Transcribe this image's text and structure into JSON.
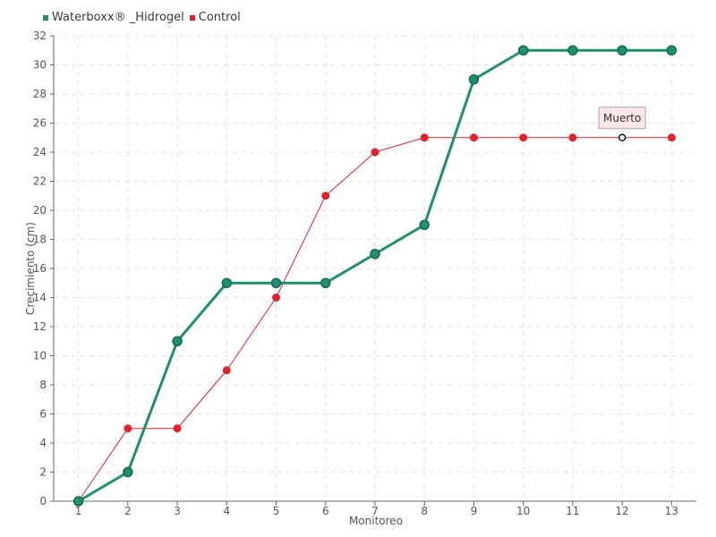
{
  "chart_data": {
    "type": "line",
    "x": [
      1,
      2,
      3,
      4,
      5,
      6,
      7,
      8,
      9,
      10,
      11,
      12,
      13
    ],
    "xlabel": "Monitoreo",
    "ylabel": "Crecimiento (cm)",
    "ylim": [
      0,
      32
    ],
    "yticks": [
      0,
      2,
      4,
      6,
      8,
      10,
      12,
      14,
      16,
      18,
      20,
      22,
      24,
      26,
      28,
      30,
      32
    ],
    "grid": true,
    "legend_position": "top-left",
    "series": [
      {
        "name": "Waterboxx® _Hidrogel",
        "color": "#1f8f6f",
        "values": [
          0,
          2,
          11,
          15,
          15,
          15,
          17,
          19,
          29,
          31,
          31,
          31,
          31
        ]
      },
      {
        "name": "Control",
        "color": "#e0222e",
        "values": [
          0,
          5,
          5,
          9,
          14,
          21,
          24,
          25,
          25,
          25,
          25,
          25,
          25
        ]
      }
    ],
    "annotation": {
      "text": "Muerto",
      "x": 12,
      "y": 25,
      "series": "Control"
    }
  }
}
